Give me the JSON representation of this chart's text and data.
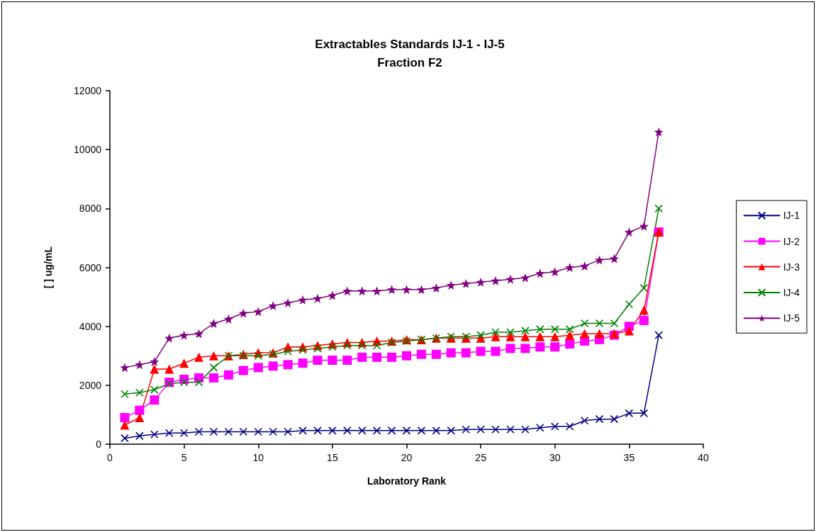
{
  "chart_data": {
    "type": "line",
    "title": "Extractables Standards IJ-1 - IJ-5\nFraction F2",
    "xlabel": "Laboratory Rank",
    "ylabel": "[ ] ug/mL",
    "x": [
      1,
      2,
      3,
      4,
      5,
      6,
      7,
      8,
      9,
      10,
      11,
      12,
      13,
      14,
      15,
      16,
      17,
      18,
      19,
      20,
      21,
      22,
      23,
      24,
      25,
      26,
      27,
      28,
      29,
      30,
      31,
      32,
      33,
      34,
      35,
      36,
      37
    ],
    "series": [
      {
        "name": "IJ-1",
        "color": "#000080",
        "marker": "cross",
        "values": [
          200,
          280,
          330,
          380,
          380,
          420,
          420,
          420,
          420,
          420,
          420,
          420,
          460,
          460,
          460,
          460,
          460,
          460,
          460,
          460,
          460,
          460,
          460,
          500,
          500,
          500,
          500,
          500,
          560,
          600,
          600,
          800,
          850,
          850,
          1050,
          1050,
          3700
        ]
      },
      {
        "name": "IJ-2",
        "color": "#ff00ff",
        "marker": "square",
        "values": [
          900,
          1150,
          1500,
          2100,
          2200,
          2250,
          2250,
          2350,
          2500,
          2600,
          2650,
          2700,
          2750,
          2850,
          2850,
          2850,
          2950,
          2950,
          2950,
          3000,
          3050,
          3050,
          3100,
          3100,
          3150,
          3150,
          3250,
          3250,
          3300,
          3300,
          3400,
          3500,
          3550,
          3700,
          4000,
          4200,
          7200
        ]
      },
      {
        "name": "IJ-3",
        "color": "#ff0000",
        "marker": "triangle",
        "values": [
          650,
          900,
          2550,
          2550,
          2750,
          2950,
          3000,
          3000,
          3050,
          3100,
          3100,
          3300,
          3300,
          3350,
          3400,
          3450,
          3450,
          3500,
          3500,
          3550,
          3550,
          3600,
          3600,
          3600,
          3600,
          3650,
          3650,
          3650,
          3650,
          3650,
          3700,
          3750,
          3750,
          3750,
          3850,
          4550,
          7200
        ]
      },
      {
        "name": "IJ-4",
        "color": "#008000",
        "marker": "cross",
        "values": [
          1700,
          1750,
          1850,
          2050,
          2100,
          2100,
          2600,
          3000,
          3000,
          3000,
          3050,
          3150,
          3200,
          3250,
          3300,
          3350,
          3350,
          3350,
          3450,
          3500,
          3550,
          3600,
          3650,
          3650,
          3700,
          3800,
          3800,
          3850,
          3900,
          3900,
          3900,
          4100,
          4100,
          4100,
          4750,
          5300,
          8000
        ]
      },
      {
        "name": "IJ-5",
        "color": "#800080",
        "marker": "star",
        "values": [
          2600,
          2700,
          2800,
          3600,
          3700,
          3750,
          4100,
          4250,
          4450,
          4500,
          4700,
          4800,
          4900,
          4950,
          5050,
          5200,
          5200,
          5200,
          5250,
          5250,
          5250,
          5300,
          5400,
          5450,
          5500,
          5550,
          5600,
          5650,
          5800,
          5850,
          6000,
          6050,
          6250,
          6300,
          7200,
          7400,
          10600
        ]
      }
    ],
    "xlim": [
      0,
      40
    ],
    "xticks": [
      0,
      5,
      10,
      15,
      20,
      25,
      30,
      35,
      40
    ],
    "ylim": [
      0,
      12000
    ],
    "yticks": [
      0,
      2000,
      4000,
      6000,
      8000,
      10000,
      12000
    ],
    "grid": false,
    "legend": "right"
  }
}
